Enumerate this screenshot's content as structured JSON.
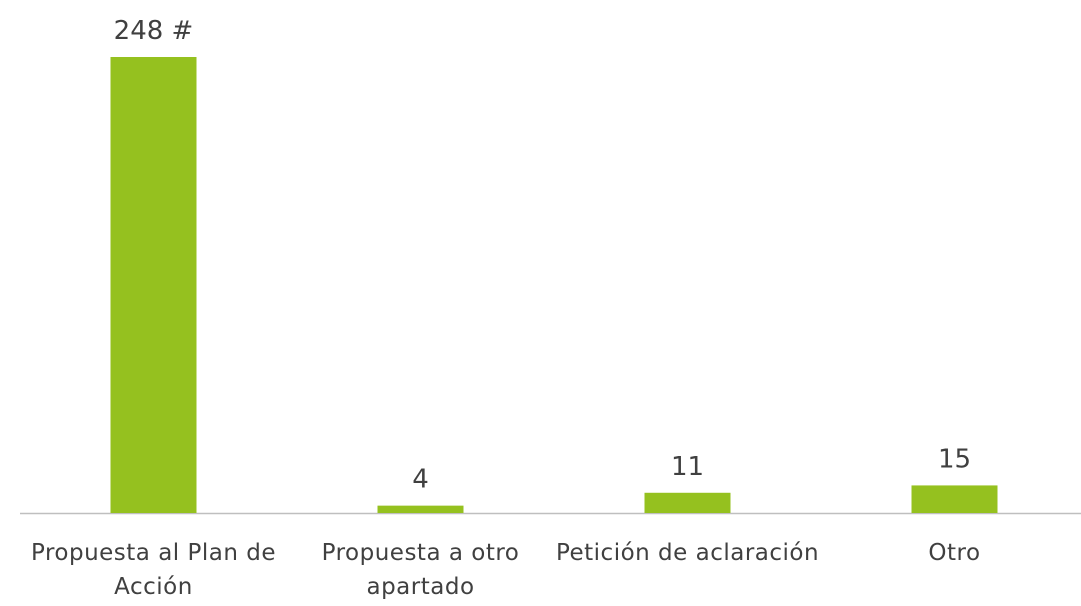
{
  "chart_data": {
    "type": "bar",
    "categories": [
      "Propuesta al Plan de Acción",
      "Propuesta a otro apartado",
      "Petición de aclaración",
      "Otro"
    ],
    "values": [
      248,
      4,
      11,
      15
    ],
    "value_labels": [
      "248 #",
      "4",
      "11",
      "15"
    ],
    "color": "#95c11f"
  }
}
